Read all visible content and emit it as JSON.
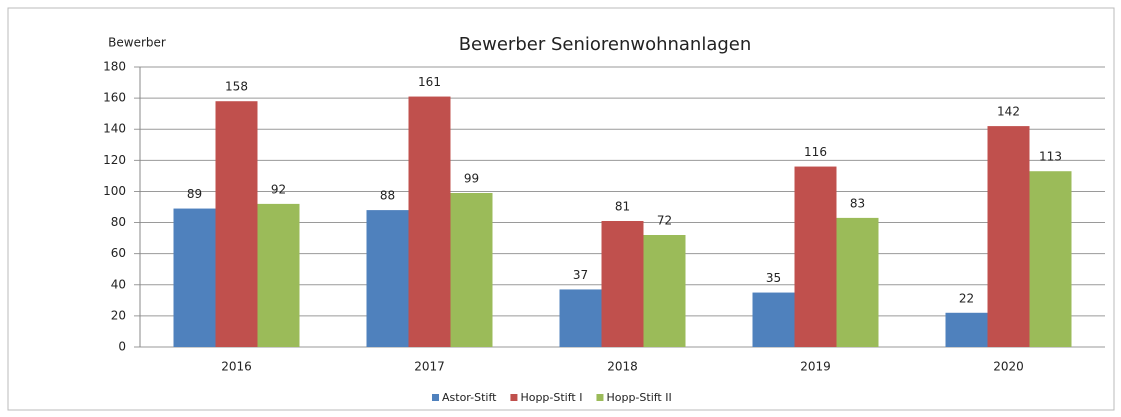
{
  "chart_data": {
    "type": "bar",
    "title": "Bewerber Seniorenwohnanlagen",
    "y_label": "Bewerber",
    "categories": [
      "2016",
      "2017",
      "2018",
      "2019",
      "2020"
    ],
    "series": [
      {
        "name": "Astor-Stift",
        "color": "#4f81bd",
        "values": [
          89,
          88,
          37,
          35,
          22
        ]
      },
      {
        "name": "Hopp-Stift I",
        "color": "#c0504d",
        "values": [
          158,
          161,
          81,
          116,
          142
        ]
      },
      {
        "name": "Hopp-Stift II",
        "color": "#9bbb59",
        "values": [
          92,
          99,
          72,
          83,
          113
        ]
      }
    ],
    "ylim": [
      0,
      180
    ],
    "yticks": [
      0,
      20,
      40,
      60,
      80,
      100,
      120,
      140,
      160,
      180
    ],
    "grid": true,
    "legend": "bottom"
  }
}
